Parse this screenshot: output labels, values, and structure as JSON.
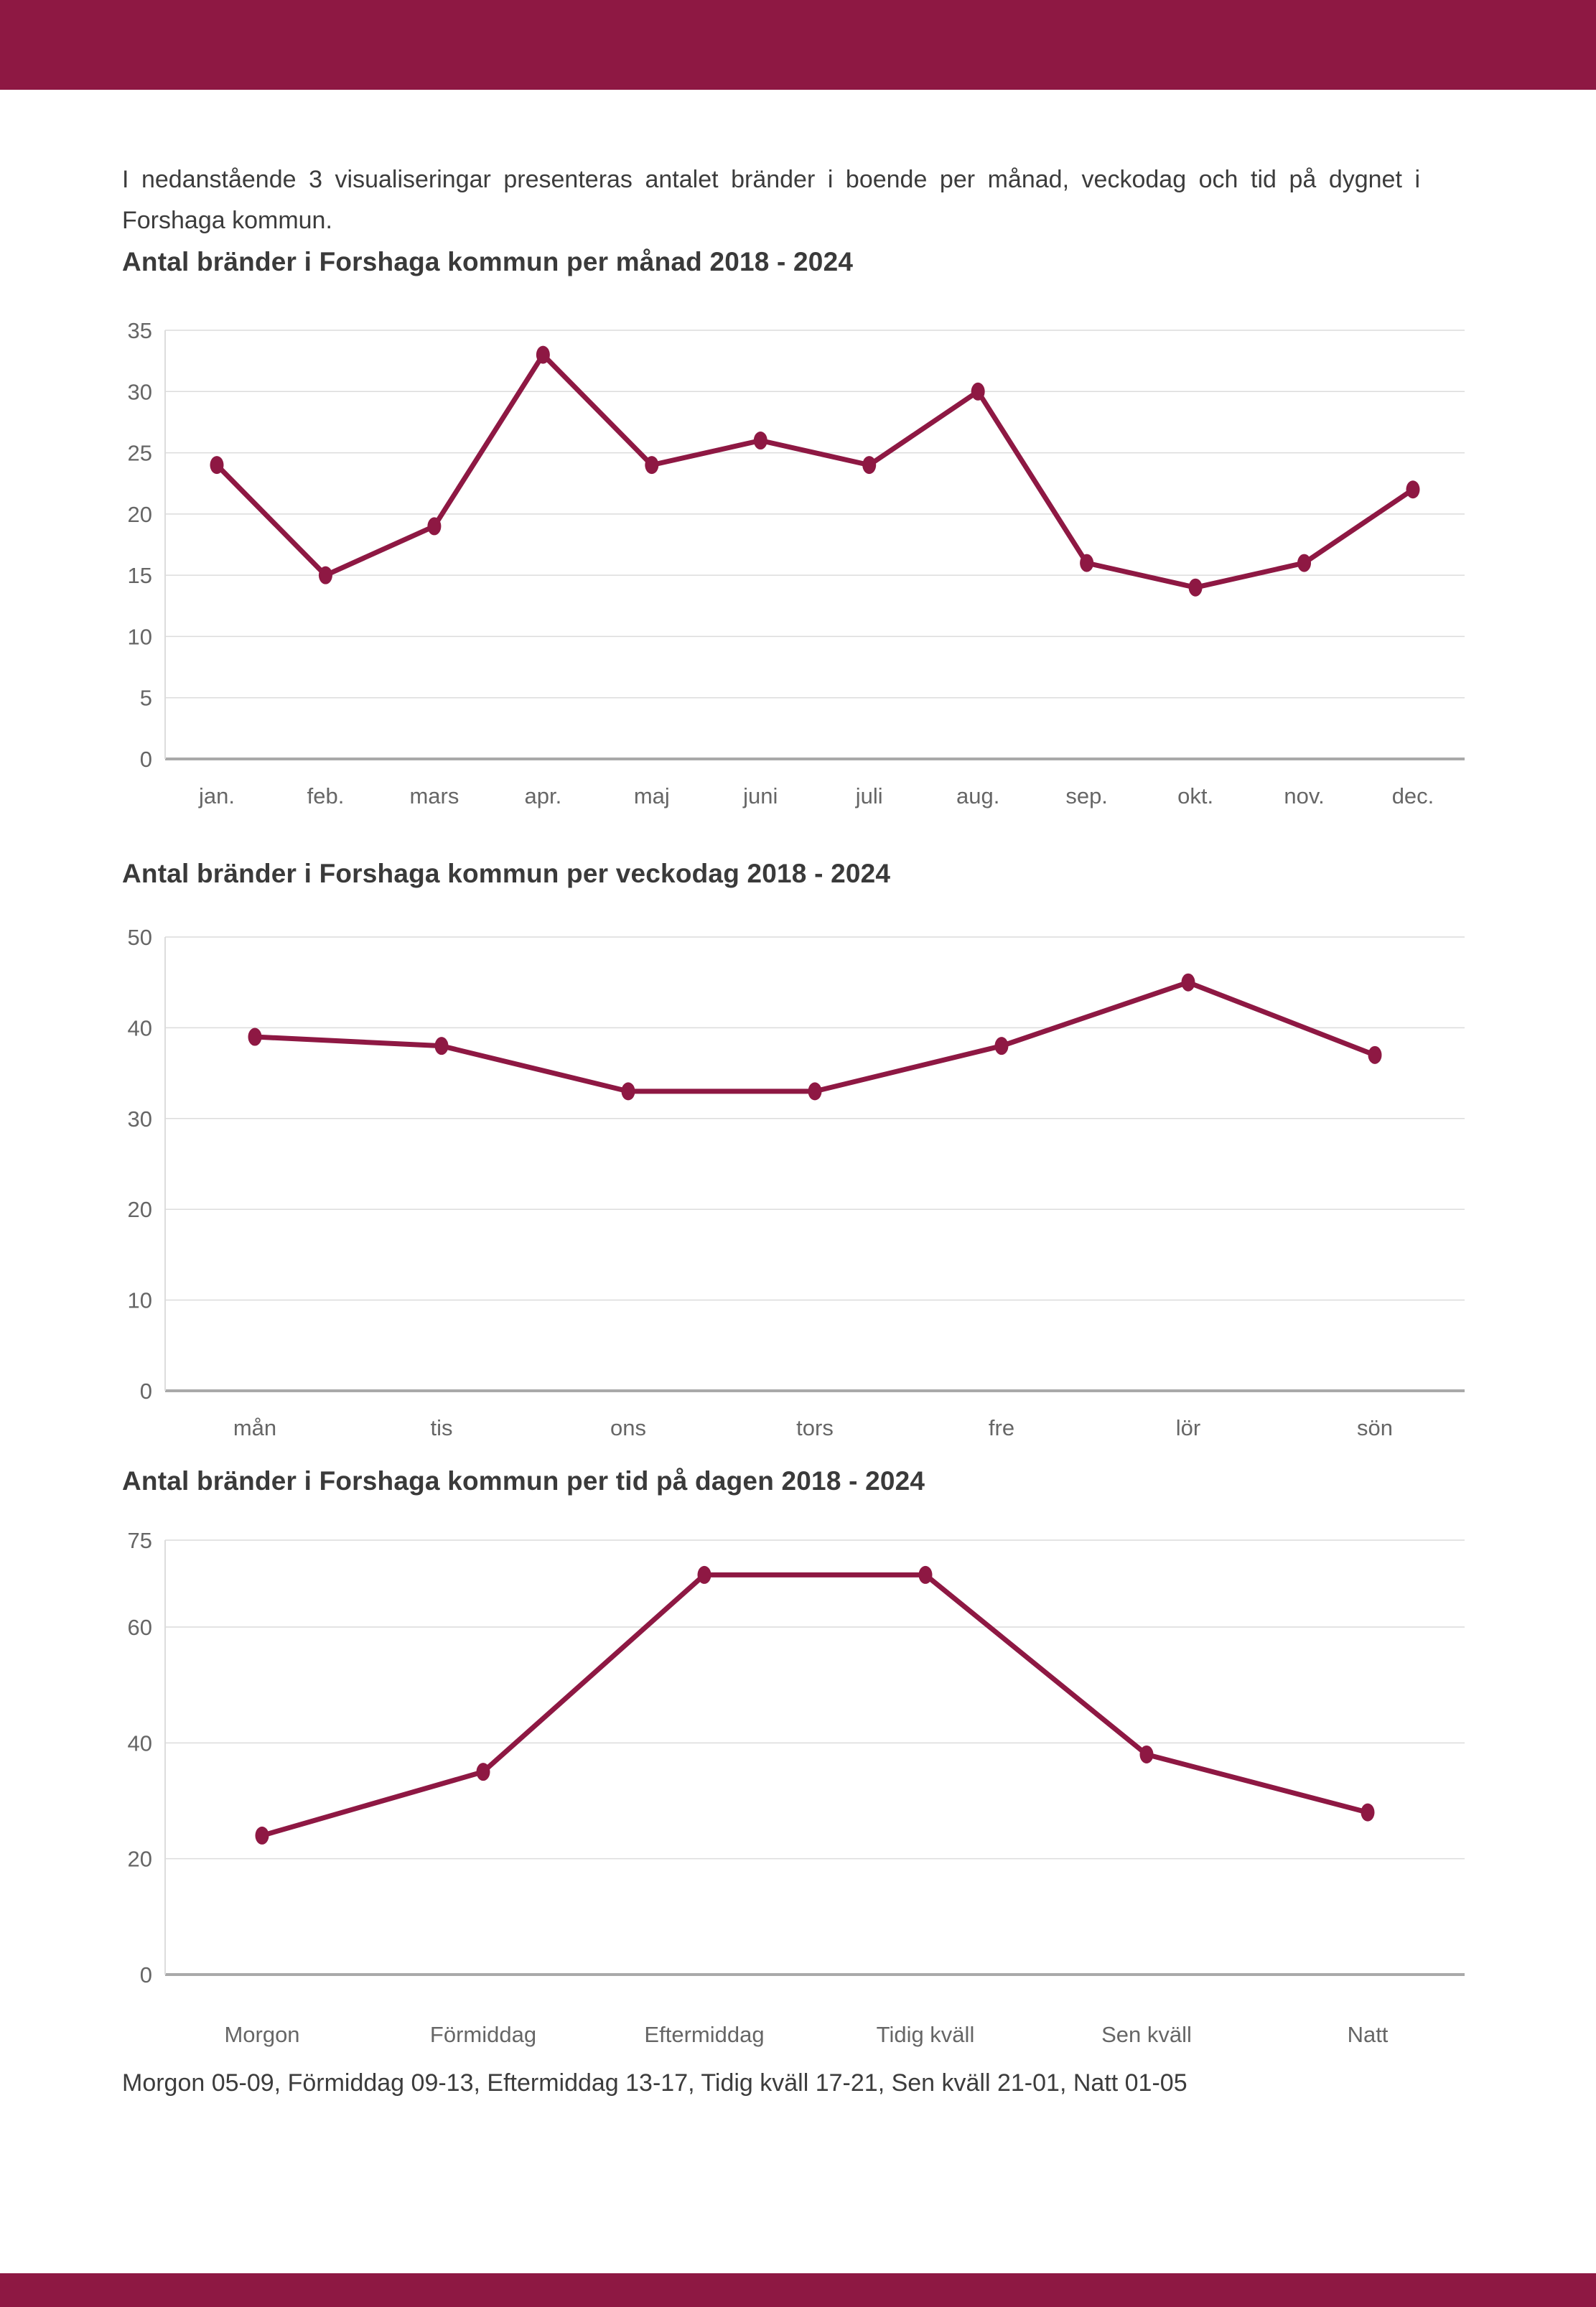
{
  "page": {
    "accent_color": "#8E1843",
    "intro_text": "I nedanstående 3 visualiseringar presenteras antalet bränder i boende per månad, veckodag och tid på dygnet i Forshaga kommun.",
    "footer_note": "Morgon 05-09, Förmiddag 09-13, Eftermiddag 13-17, Tidig kväll 17-21, Sen kväll 21-01, Natt 01-05"
  },
  "colors": {
    "line": "#8E1843",
    "gridline": "#dcdcdc",
    "axis_line": "#a9a9a9",
    "tick_label": "#666666",
    "title_text": "#3a3a3a"
  },
  "chart_data": [
    {
      "type": "line",
      "title": "Antal bränder i Forshaga kommun per månad 2018 - 2024",
      "categories": [
        "jan.",
        "feb.",
        "mars",
        "apr.",
        "maj",
        "juni",
        "juli",
        "aug.",
        "sep.",
        "okt.",
        "nov.",
        "dec."
      ],
      "values": [
        24,
        15,
        19,
        33,
        24,
        26,
        24,
        30,
        16,
        14,
        16,
        22
      ],
      "xlabel": "",
      "ylabel": "",
      "ylim": [
        0,
        35
      ],
      "yticks": [
        0,
        5,
        10,
        15,
        20,
        25,
        30,
        35
      ],
      "grid": true,
      "legend": "none",
      "line_color": "#8E1843"
    },
    {
      "type": "line",
      "title": "Antal bränder i Forshaga kommun per veckodag 2018 - 2024",
      "categories": [
        "mån",
        "tis",
        "ons",
        "tors",
        "fre",
        "lör",
        "sön"
      ],
      "values": [
        39,
        38,
        33,
        33,
        38,
        45,
        37
      ],
      "xlabel": "",
      "ylabel": "",
      "ylim": [
        0,
        50
      ],
      "yticks": [
        0,
        10,
        20,
        30,
        40,
        50
      ],
      "grid": true,
      "legend": "none",
      "line_color": "#8E1843"
    },
    {
      "type": "line",
      "title": "Antal bränder i Forshaga kommun per tid på dagen 2018 - 2024",
      "categories": [
        "Morgon",
        "Förmiddag",
        "Eftermiddag",
        "Tidig kväll",
        "Sen kväll",
        "Natt"
      ],
      "values": [
        24,
        35,
        69,
        69,
        38,
        28
      ],
      "xlabel": "",
      "ylabel": "",
      "ylim": [
        0,
        75
      ],
      "yticks": [
        0,
        20,
        40,
        60,
        75
      ],
      "grid": true,
      "legend": "none",
      "line_color": "#8E1843"
    }
  ]
}
